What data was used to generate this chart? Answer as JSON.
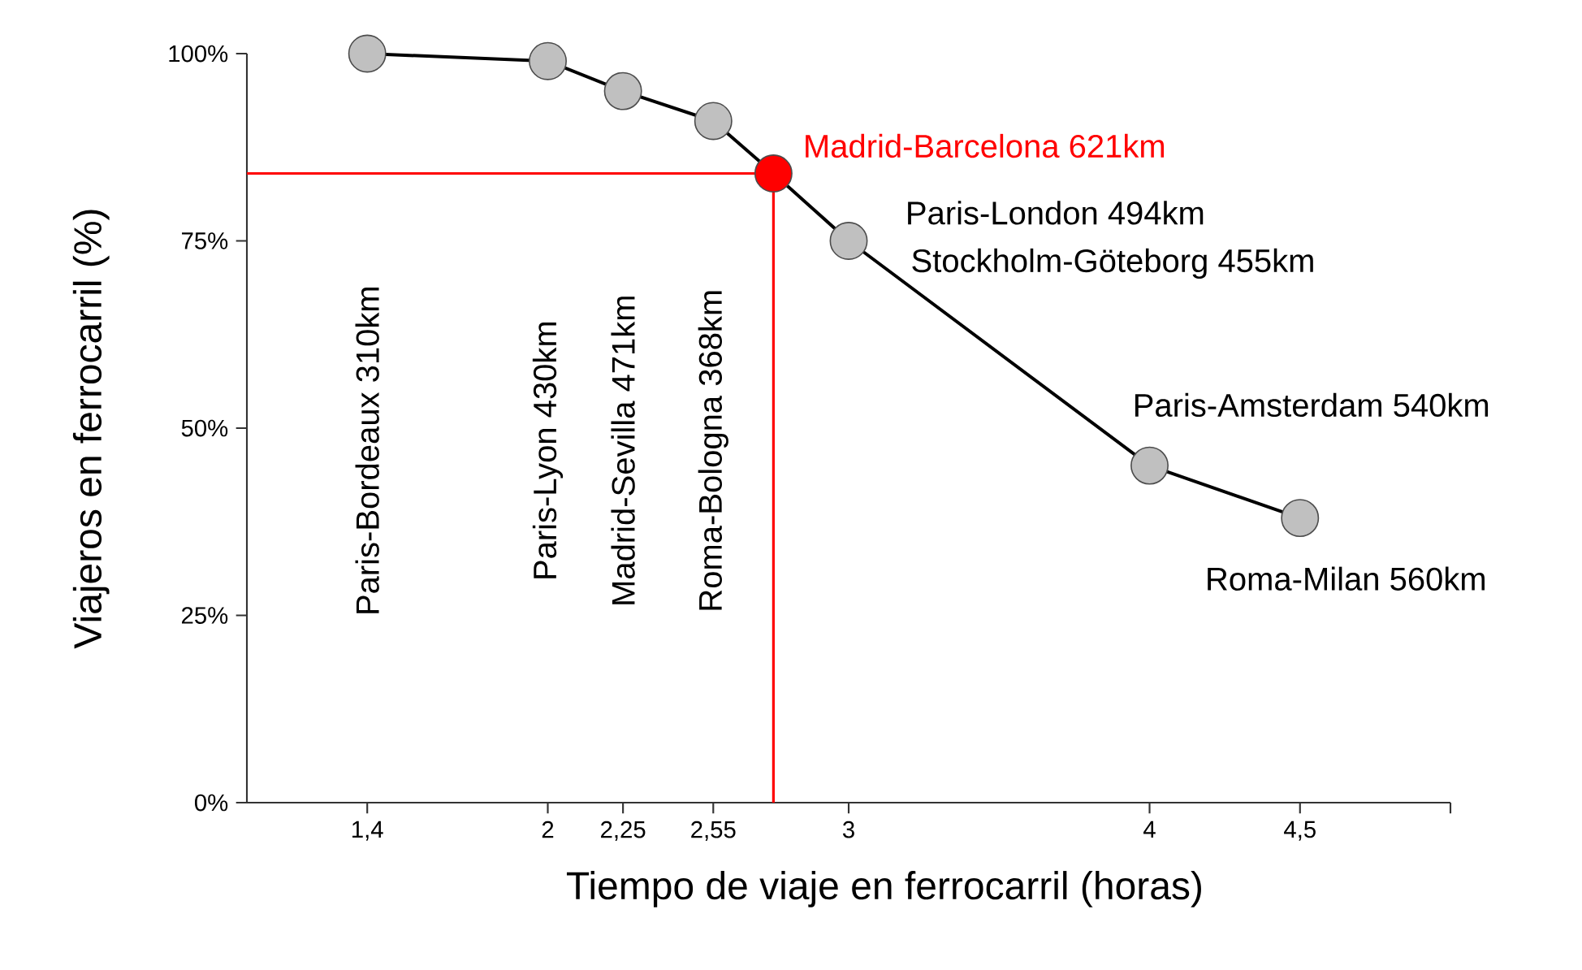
{
  "chart_data": {
    "type": "line",
    "xlabel": "Tiempo de viaje en ferrocarril (horas)",
    "ylabel": "Viajeros en ferrocarril (%)",
    "x": [
      1.4,
      2,
      2.25,
      2.55,
      2.75,
      3,
      4,
      4.5
    ],
    "series": [
      {
        "color": "#000000",
        "values": [
          100,
          99,
          95,
          91,
          84,
          75,
          45,
          38
        ],
        "colors": [
          "#c0c0c0",
          "#c0c0c0",
          "#c0c0c0",
          "#c0c0c0",
          "#ff0000",
          "#c0c0c0",
          "#c0c0c0",
          "#c0c0c0"
        ]
      }
    ],
    "marker": "circle",
    "line_style": "solid",
    "xlim": [
      1,
      5
    ],
    "xticks": [
      {
        "value": 1.4,
        "label": "1,4"
      },
      2,
      {
        "value": 2.25,
        "label": "2,25"
      },
      {
        "value": 2.55,
        "label": "2,55"
      },
      3,
      4,
      {
        "value": 4.5,
        "label": "4,5"
      },
      {
        "value": 5,
        "label": null
      }
    ],
    "ylim": [
      0,
      100
    ],
    "yticks": [
      {
        "value": 0,
        "label": "0%"
      },
      {
        "value": 25,
        "label": "25%"
      },
      {
        "value": 50,
        "label": "50%"
      },
      {
        "value": 75,
        "label": "75%"
      },
      {
        "value": 100,
        "label": "100%"
      }
    ],
    "ref_lines": [
      {
        "axis": "y",
        "value": 84,
        "color": "#ff0000"
      },
      {
        "axis": "x",
        "value": 2.75,
        "color": "#ff0000"
      }
    ],
    "annotations": [
      "Paris-Bordeaux 310km",
      "Paris-Lyon 430km",
      "Madrid-Sevilla 471km",
      "Roma-Bologna 368km",
      {
        "text": "Madrid-Barcelona 621km",
        "x": 2.75,
        "y": 84
      },
      {
        "text": "Paris-London 494km",
        "x": 3,
        "y": 75
      },
      {
        "text": "Stockholm-Göteborg 455km",
        "x": 3,
        "y": 75
      },
      {
        "text": "Paris-Amsterdam 540km",
        "x": 4,
        "y": 45
      },
      {
        "text": "Roma-Milan 560km",
        "x": 4.5,
        "y": 38
      }
    ]
  }
}
